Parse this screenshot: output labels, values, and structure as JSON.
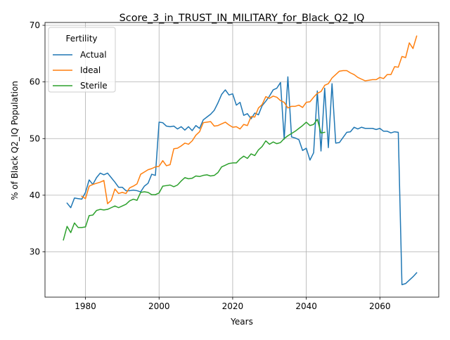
{
  "chart_data": {
    "type": "line",
    "title": "Score_3_in_TRUST_IN_MILITARY_for_Black_Q2_IQ",
    "xlabel": "Years",
    "ylabel": "% of Black Q2_IQ Population",
    "xlim": [
      1969,
      2076
    ],
    "ylim": [
      22,
      70.5
    ],
    "xticks": [
      1980,
      2000,
      2020,
      2040,
      2060
    ],
    "yticks": [
      30,
      40,
      50,
      60,
      70
    ],
    "grid": true,
    "legend": {
      "title": "Fertility",
      "placement": "top-left"
    },
    "series": [
      {
        "name": "Actual",
        "color": "#1f77b4",
        "points": [
          [
            1975,
            38.6
          ],
          [
            1976,
            37.8
          ],
          [
            1977,
            39.5
          ],
          [
            1978,
            39.4
          ],
          [
            1979,
            39.3
          ],
          [
            1980,
            40.5
          ],
          [
            1981,
            42.7
          ],
          [
            1982,
            41.9
          ],
          [
            1983,
            43.1
          ],
          [
            1984,
            43.9
          ],
          [
            1985,
            43.6
          ],
          [
            1986,
            43.9
          ],
          [
            1987,
            43.1
          ],
          [
            1988,
            42.3
          ],
          [
            1989,
            41.4
          ],
          [
            1990,
            41.4
          ],
          [
            1991,
            40.8
          ],
          [
            1992,
            40.8
          ],
          [
            1993,
            40.9
          ],
          [
            1994,
            40.8
          ],
          [
            1995,
            40.6
          ],
          [
            1996,
            41.6
          ],
          [
            1997,
            42.1
          ],
          [
            1998,
            43.7
          ],
          [
            1999,
            43.5
          ],
          [
            2000,
            52.9
          ],
          [
            2001,
            52.8
          ],
          [
            2002,
            52.2
          ],
          [
            2003,
            52.1
          ],
          [
            2004,
            52.2
          ],
          [
            2005,
            51.7
          ],
          [
            2006,
            52.1
          ],
          [
            2007,
            51.5
          ],
          [
            2008,
            52.1
          ],
          [
            2009,
            51.4
          ],
          [
            2010,
            52.3
          ],
          [
            2011,
            51.8
          ],
          [
            2012,
            53.3
          ],
          [
            2013,
            53.8
          ],
          [
            2014,
            54.3
          ],
          [
            2015,
            55.0
          ],
          [
            2016,
            56.3
          ],
          [
            2017,
            57.8
          ],
          [
            2018,
            58.6
          ],
          [
            2019,
            57.7
          ],
          [
            2020,
            57.9
          ],
          [
            2021,
            55.9
          ],
          [
            2022,
            56.4
          ],
          [
            2023,
            54.1
          ],
          [
            2024,
            54.4
          ],
          [
            2025,
            53.5
          ],
          [
            2026,
            54.5
          ],
          [
            2027,
            54.2
          ],
          [
            2028,
            55.8
          ],
          [
            2029,
            56.6
          ],
          [
            2030,
            57.5
          ],
          [
            2031,
            58.6
          ],
          [
            2032,
            58.9
          ],
          [
            2033,
            59.9
          ],
          [
            2034,
            49.9
          ],
          [
            2035,
            60.9
          ],
          [
            2036,
            50.3
          ],
          [
            2037,
            50.1
          ],
          [
            2038,
            49.8
          ],
          [
            2039,
            47.9
          ],
          [
            2040,
            48.3
          ],
          [
            2041,
            46.2
          ],
          [
            2042,
            47.5
          ],
          [
            2043,
            58.4
          ],
          [
            2044,
            47.8
          ],
          [
            2045,
            58.9
          ],
          [
            2046,
            48.4
          ],
          [
            2047,
            59.7
          ],
          [
            2048,
            49.2
          ],
          [
            2049,
            49.3
          ],
          [
            2050,
            50.2
          ],
          [
            2051,
            51.1
          ],
          [
            2052,
            51.2
          ],
          [
            2053,
            52.0
          ],
          [
            2054,
            51.7
          ],
          [
            2055,
            52.0
          ],
          [
            2056,
            51.8
          ],
          [
            2057,
            51.8
          ],
          [
            2058,
            51.8
          ],
          [
            2059,
            51.6
          ],
          [
            2060,
            51.8
          ],
          [
            2061,
            51.3
          ],
          [
            2062,
            51.3
          ],
          [
            2063,
            51.0
          ],
          [
            2064,
            51.2
          ],
          [
            2065,
            51.1
          ],
          [
            2066,
            24.2
          ],
          [
            2067,
            24.4
          ],
          [
            2068,
            25.0
          ],
          [
            2069,
            25.6
          ],
          [
            2070,
            26.3
          ]
        ]
      },
      {
        "name": "Ideal",
        "color": "#ff7f0e",
        "points": [
          [
            1979,
            39.8
          ],
          [
            1980,
            39.4
          ],
          [
            1981,
            41.6
          ],
          [
            1982,
            41.9
          ],
          [
            1983,
            42.1
          ],
          [
            1984,
            42.3
          ],
          [
            1985,
            42.6
          ],
          [
            1986,
            38.5
          ],
          [
            1987,
            39.1
          ],
          [
            1988,
            41.1
          ],
          [
            1989,
            40.3
          ],
          [
            1990,
            40.5
          ],
          [
            1991,
            40.3
          ],
          [
            1992,
            41.3
          ],
          [
            1993,
            41.6
          ],
          [
            1994,
            42.0
          ],
          [
            1995,
            43.7
          ],
          [
            1996,
            44.1
          ],
          [
            1997,
            44.5
          ],
          [
            1998,
            44.7
          ],
          [
            1999,
            45.0
          ],
          [
            2000,
            45.1
          ],
          [
            2001,
            46.1
          ],
          [
            2002,
            45.2
          ],
          [
            2003,
            45.4
          ],
          [
            2004,
            48.2
          ],
          [
            2005,
            48.3
          ],
          [
            2006,
            48.7
          ],
          [
            2007,
            49.2
          ],
          [
            2008,
            49.0
          ],
          [
            2009,
            49.6
          ],
          [
            2010,
            50.6
          ],
          [
            2011,
            51.2
          ],
          [
            2012,
            52.8
          ],
          [
            2013,
            52.9
          ],
          [
            2014,
            53.0
          ],
          [
            2015,
            52.2
          ],
          [
            2016,
            52.3
          ],
          [
            2017,
            52.6
          ],
          [
            2018,
            52.9
          ],
          [
            2019,
            52.4
          ],
          [
            2020,
            52.0
          ],
          [
            2021,
            52.1
          ],
          [
            2022,
            51.7
          ],
          [
            2023,
            52.5
          ],
          [
            2024,
            52.3
          ],
          [
            2025,
            53.9
          ],
          [
            2026,
            53.8
          ],
          [
            2027,
            55.4
          ],
          [
            2028,
            56.0
          ],
          [
            2029,
            57.4
          ],
          [
            2030,
            57.1
          ],
          [
            2031,
            57.5
          ],
          [
            2032,
            57.3
          ],
          [
            2033,
            56.7
          ],
          [
            2034,
            56.4
          ],
          [
            2035,
            55.4
          ],
          [
            2036,
            55.7
          ],
          [
            2037,
            55.7
          ],
          [
            2038,
            55.9
          ],
          [
            2039,
            55.5
          ],
          [
            2040,
            56.4
          ],
          [
            2041,
            56.5
          ],
          [
            2042,
            57.3
          ],
          [
            2043,
            58.0
          ],
          [
            2044,
            58.3
          ],
          [
            2045,
            59.4
          ],
          [
            2046,
            59.7
          ],
          [
            2047,
            60.7
          ],
          [
            2048,
            61.3
          ],
          [
            2049,
            61.9
          ],
          [
            2050,
            62.0
          ],
          [
            2051,
            62.0
          ],
          [
            2052,
            61.6
          ],
          [
            2053,
            61.3
          ],
          [
            2054,
            60.8
          ],
          [
            2055,
            60.5
          ],
          [
            2056,
            60.2
          ],
          [
            2057,
            60.3
          ],
          [
            2058,
            60.4
          ],
          [
            2059,
            60.4
          ],
          [
            2060,
            60.8
          ],
          [
            2061,
            60.6
          ],
          [
            2062,
            61.3
          ],
          [
            2063,
            61.3
          ],
          [
            2064,
            62.7
          ],
          [
            2065,
            62.6
          ],
          [
            2066,
            64.5
          ],
          [
            2067,
            64.3
          ],
          [
            2068,
            66.9
          ],
          [
            2069,
            65.9
          ],
          [
            2070,
            68.1
          ]
        ]
      },
      {
        "name": "Sterile",
        "color": "#2ca02c",
        "points": [
          [
            1974,
            32.1
          ],
          [
            1975,
            34.5
          ],
          [
            1976,
            33.4
          ],
          [
            1977,
            35.1
          ],
          [
            1978,
            34.3
          ],
          [
            1979,
            34.3
          ],
          [
            1980,
            34.4
          ],
          [
            1981,
            36.4
          ],
          [
            1982,
            36.5
          ],
          [
            1983,
            37.3
          ],
          [
            1984,
            37.5
          ],
          [
            1985,
            37.4
          ],
          [
            1986,
            37.5
          ],
          [
            1987,
            37.8
          ],
          [
            1988,
            38.1
          ],
          [
            1989,
            37.8
          ],
          [
            1990,
            38.1
          ],
          [
            1991,
            38.4
          ],
          [
            1992,
            39.0
          ],
          [
            1993,
            39.3
          ],
          [
            1994,
            39.1
          ],
          [
            1995,
            40.5
          ],
          [
            1996,
            40.6
          ],
          [
            1997,
            40.5
          ],
          [
            1998,
            40.1
          ],
          [
            1999,
            40.1
          ],
          [
            2000,
            40.4
          ],
          [
            2001,
            41.6
          ],
          [
            2002,
            41.7
          ],
          [
            2003,
            41.8
          ],
          [
            2004,
            41.5
          ],
          [
            2005,
            41.8
          ],
          [
            2006,
            42.5
          ],
          [
            2007,
            43.1
          ],
          [
            2008,
            42.9
          ],
          [
            2009,
            43.0
          ],
          [
            2010,
            43.4
          ],
          [
            2011,
            43.3
          ],
          [
            2012,
            43.5
          ],
          [
            2013,
            43.6
          ],
          [
            2014,
            43.4
          ],
          [
            2015,
            43.5
          ],
          [
            2016,
            44.0
          ],
          [
            2017,
            45.0
          ],
          [
            2018,
            45.3
          ],
          [
            2019,
            45.6
          ],
          [
            2020,
            45.7
          ],
          [
            2021,
            45.7
          ],
          [
            2022,
            46.4
          ],
          [
            2023,
            46.9
          ],
          [
            2024,
            46.5
          ],
          [
            2025,
            47.3
          ],
          [
            2026,
            47.0
          ],
          [
            2027,
            48.0
          ],
          [
            2028,
            48.6
          ],
          [
            2029,
            49.6
          ],
          [
            2030,
            49.0
          ],
          [
            2031,
            49.4
          ],
          [
            2032,
            49.1
          ],
          [
            2033,
            49.3
          ],
          [
            2034,
            50.0
          ],
          [
            2035,
            50.5
          ],
          [
            2036,
            50.9
          ],
          [
            2037,
            51.3
          ],
          [
            2038,
            51.8
          ],
          [
            2039,
            52.3
          ],
          [
            2040,
            52.9
          ],
          [
            2041,
            52.3
          ],
          [
            2042,
            52.5
          ],
          [
            2043,
            53.4
          ],
          [
            2044,
            51.0
          ],
          [
            2045,
            51.1
          ]
        ]
      }
    ]
  }
}
